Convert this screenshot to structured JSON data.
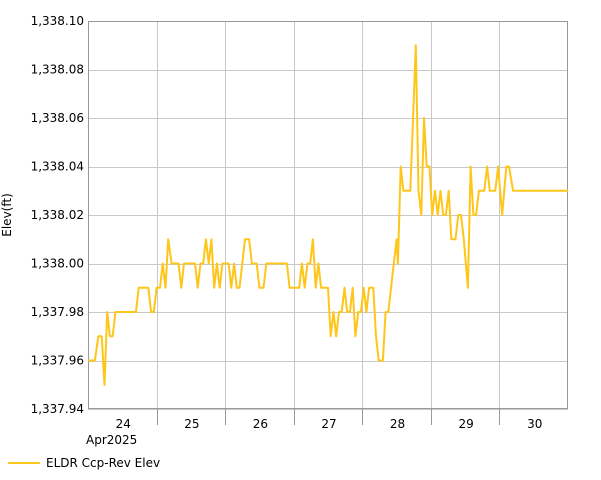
{
  "chart_data": {
    "type": "line",
    "title": "",
    "ylabel": "Elev(ft)",
    "xlabel": "",
    "ylim": [
      1337.94,
      1338.1
    ],
    "y_ticks": [
      1337.94,
      1337.96,
      1337.98,
      1338.0,
      1338.02,
      1338.04,
      1338.06,
      1338.08,
      1338.1
    ],
    "y_tick_labels": [
      "1,337.94",
      "1,337.96",
      "1,337.98",
      "1,338.00",
      "1,338.02",
      "1,338.04",
      "1,338.06",
      "1,338.08",
      "1,338.10"
    ],
    "x_unit": "day of Apr 2025",
    "xlim": [
      23.5,
      30.5
    ],
    "x_day_labels": [
      {
        "day": 24,
        "label": "24"
      },
      {
        "day": 25,
        "label": "25"
      },
      {
        "day": 26,
        "label": "26"
      },
      {
        "day": 27,
        "label": "27"
      },
      {
        "day": 28,
        "label": "28"
      },
      {
        "day": 29,
        "label": "29"
      },
      {
        "day": 30,
        "label": "30"
      }
    ],
    "x_month_label": "Apr2025",
    "grid": true,
    "legend_position": "bottom-left",
    "series": [
      {
        "name": "ELDR Ccp-Rev Elev",
        "color": "#FFC61A",
        "points": [
          [
            23.5,
            1337.96
          ],
          [
            23.6,
            1337.96
          ],
          [
            23.65,
            1337.97
          ],
          [
            23.7,
            1337.97
          ],
          [
            23.74,
            1337.95
          ],
          [
            23.78,
            1337.98
          ],
          [
            23.82,
            1337.97
          ],
          [
            23.86,
            1337.97
          ],
          [
            23.9,
            1337.98
          ],
          [
            24.2,
            1337.98
          ],
          [
            24.24,
            1337.99
          ],
          [
            24.38,
            1337.99
          ],
          [
            24.42,
            1337.98
          ],
          [
            24.46,
            1337.98
          ],
          [
            24.5,
            1337.99
          ],
          [
            24.55,
            1337.99
          ],
          [
            24.59,
            1338.0
          ],
          [
            24.63,
            1337.99
          ],
          [
            24.67,
            1338.01
          ],
          [
            24.72,
            1338.0
          ],
          [
            24.82,
            1338.0
          ],
          [
            24.86,
            1337.99
          ],
          [
            24.9,
            1338.0
          ],
          [
            25.06,
            1338.0
          ],
          [
            25.1,
            1337.99
          ],
          [
            25.14,
            1338.0
          ],
          [
            25.18,
            1338.0
          ],
          [
            25.22,
            1338.01
          ],
          [
            25.26,
            1338.0
          ],
          [
            25.3,
            1338.01
          ],
          [
            25.34,
            1337.99
          ],
          [
            25.38,
            1338.0
          ],
          [
            25.42,
            1337.99
          ],
          [
            25.46,
            1338.0
          ],
          [
            25.55,
            1338.0
          ],
          [
            25.59,
            1337.99
          ],
          [
            25.63,
            1338.0
          ],
          [
            25.67,
            1337.99
          ],
          [
            25.71,
            1337.99
          ],
          [
            25.75,
            1338.0
          ],
          [
            25.79,
            1338.01
          ],
          [
            25.85,
            1338.01
          ],
          [
            25.89,
            1338.0
          ],
          [
            25.96,
            1338.0
          ],
          [
            26.0,
            1337.99
          ],
          [
            26.06,
            1337.99
          ],
          [
            26.1,
            1338.0
          ],
          [
            26.4,
            1338.0
          ],
          [
            26.44,
            1337.99
          ],
          [
            26.58,
            1337.99
          ],
          [
            26.62,
            1338.0
          ],
          [
            26.66,
            1337.99
          ],
          [
            26.7,
            1338.0
          ],
          [
            26.74,
            1338.0
          ],
          [
            26.78,
            1338.01
          ],
          [
            26.82,
            1337.99
          ],
          [
            26.86,
            1338.0
          ],
          [
            26.9,
            1337.99
          ],
          [
            27.0,
            1337.99
          ],
          [
            27.04,
            1337.97
          ],
          [
            27.08,
            1337.98
          ],
          [
            27.12,
            1337.97
          ],
          [
            27.16,
            1337.98
          ],
          [
            27.2,
            1337.98
          ],
          [
            27.24,
            1337.99
          ],
          [
            27.28,
            1337.98
          ],
          [
            27.32,
            1337.98
          ],
          [
            27.36,
            1337.99
          ],
          [
            27.4,
            1337.97
          ],
          [
            27.44,
            1337.98
          ],
          [
            27.48,
            1337.98
          ],
          [
            27.52,
            1337.99
          ],
          [
            27.56,
            1337.98
          ],
          [
            27.6,
            1337.99
          ],
          [
            27.66,
            1337.99
          ],
          [
            27.7,
            1337.97
          ],
          [
            27.74,
            1337.96
          ],
          [
            27.8,
            1337.96
          ],
          [
            27.84,
            1337.98
          ],
          [
            27.88,
            1337.98
          ],
          [
            27.96,
            1338.0
          ],
          [
            28.0,
            1338.01
          ],
          [
            28.02,
            1338.0
          ],
          [
            28.06,
            1338.04
          ],
          [
            28.1,
            1338.03
          ],
          [
            28.2,
            1338.03
          ],
          [
            28.28,
            1338.09
          ],
          [
            28.32,
            1338.03
          ],
          [
            28.36,
            1338.02
          ],
          [
            28.4,
            1338.06
          ],
          [
            28.44,
            1338.04
          ],
          [
            28.48,
            1338.04
          ],
          [
            28.52,
            1338.02
          ],
          [
            28.56,
            1338.03
          ],
          [
            28.6,
            1338.02
          ],
          [
            28.64,
            1338.03
          ],
          [
            28.68,
            1338.02
          ],
          [
            28.72,
            1338.02
          ],
          [
            28.76,
            1338.03
          ],
          [
            28.8,
            1338.01
          ],
          [
            28.86,
            1338.01
          ],
          [
            28.9,
            1338.02
          ],
          [
            28.94,
            1338.02
          ],
          [
            28.98,
            1338.01
          ],
          [
            29.04,
            1337.99
          ],
          [
            29.08,
            1338.04
          ],
          [
            29.12,
            1338.02
          ],
          [
            29.16,
            1338.02
          ],
          [
            29.2,
            1338.03
          ],
          [
            29.28,
            1338.03
          ],
          [
            29.32,
            1338.04
          ],
          [
            29.36,
            1338.03
          ],
          [
            29.44,
            1338.03
          ],
          [
            29.48,
            1338.04
          ],
          [
            29.54,
            1338.02
          ],
          [
            29.6,
            1338.04
          ],
          [
            29.64,
            1338.04
          ],
          [
            29.7,
            1338.03
          ],
          [
            30.5,
            1338.03
          ]
        ]
      }
    ]
  }
}
